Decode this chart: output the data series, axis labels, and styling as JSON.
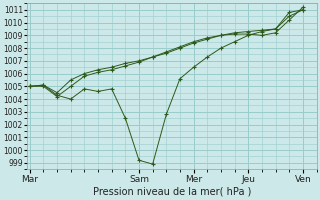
{
  "xlabel": "Pression niveau de la mer( hPa )",
  "bg_color": "#cce8e8",
  "grid_color": "#99cccc",
  "line_color": "#2d5a1b",
  "ylim": [
    998.5,
    1011.5
  ],
  "ytick_vals": [
    999,
    1000,
    1001,
    1002,
    1003,
    1004,
    1005,
    1006,
    1007,
    1008,
    1009,
    1010,
    1011
  ],
  "xtick_labels": [
    "Mar",
    "Sam",
    "Mer",
    "Jeu",
    "Ven"
  ],
  "xtick_positions": [
    0,
    4,
    6,
    8,
    10
  ],
  "xlim": [
    -0.1,
    10.4
  ],
  "lines": [
    {
      "x": [
        0,
        0.5,
        1.0,
        1.5,
        2.0,
        2.5,
        3.0,
        3.5,
        4.0,
        4.5,
        5.0,
        5.5,
        6.0,
        6.5,
        7.0,
        7.5,
        8.0,
        8.5,
        9.0,
        9.5,
        10.0
      ],
      "y": [
        1005.0,
        1005.1,
        1004.3,
        1004.0,
        1004.8,
        1004.6,
        1004.8,
        1002.5,
        999.2,
        998.9,
        1002.8,
        1005.6,
        1006.5,
        1007.3,
        1008.0,
        1008.5,
        1009.0,
        1009.3,
        1009.5,
        1010.8,
        1011.0
      ]
    },
    {
      "x": [
        0,
        0.5,
        1.0,
        1.5,
        2.0,
        2.5,
        3.0,
        3.5,
        4.0,
        4.5,
        5.0,
        5.5,
        6.0,
        6.5,
        7.0,
        7.5,
        8.0,
        8.5,
        9.0,
        9.5,
        10.0
      ],
      "y": [
        1005.0,
        1005.1,
        1004.5,
        1005.5,
        1006.0,
        1006.3,
        1006.5,
        1006.8,
        1007.0,
        1007.3,
        1007.6,
        1008.0,
        1008.4,
        1008.7,
        1009.0,
        1009.2,
        1009.3,
        1009.4,
        1009.5,
        1010.5,
        1011.0
      ]
    },
    {
      "x": [
        0,
        0.5,
        1.0,
        1.5,
        2.0,
        2.5,
        3.0,
        3.5,
        4.0,
        4.5,
        5.0,
        5.5,
        6.0,
        6.5,
        7.0,
        7.5,
        8.0,
        8.5,
        9.0,
        9.5,
        10.0
      ],
      "y": [
        1005.0,
        1005.0,
        1004.2,
        1005.0,
        1005.8,
        1006.1,
        1006.3,
        1006.6,
        1006.9,
        1007.3,
        1007.7,
        1008.1,
        1008.5,
        1008.8,
        1009.0,
        1009.1,
        1009.1,
        1009.0,
        1009.2,
        1010.2,
        1011.2
      ]
    }
  ]
}
